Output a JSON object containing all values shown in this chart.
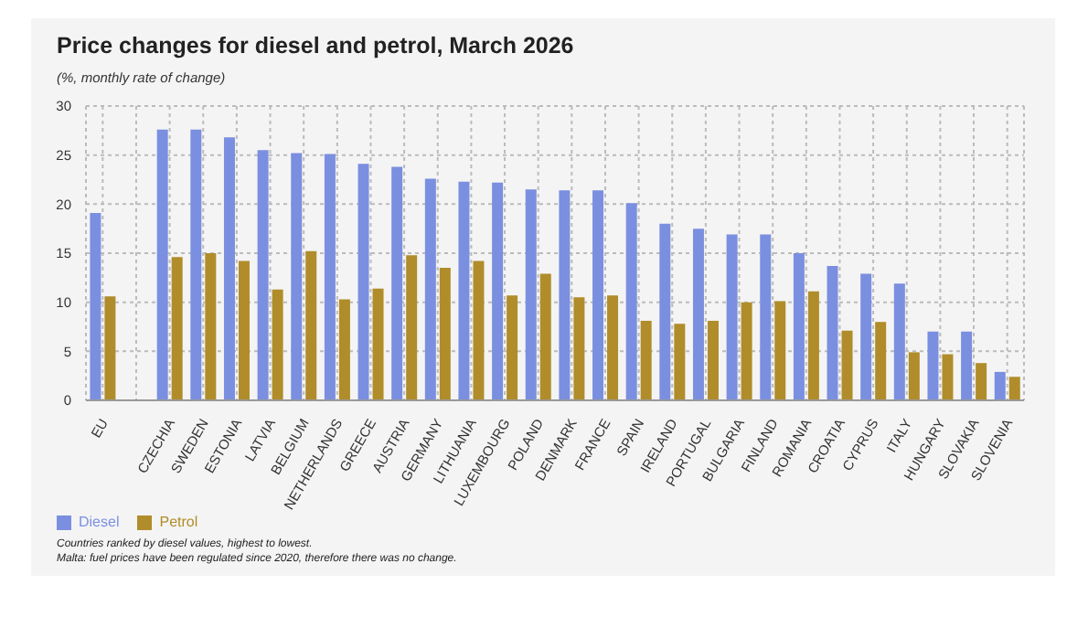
{
  "chart_data": {
    "type": "bar",
    "title": "Price changes for diesel and petrol, March 2026",
    "subtitle": "(%, monthly rate of change)",
    "categories": [
      "EU",
      null,
      "CZECHIA",
      "SWEDEN",
      "ESTONIA",
      "LATVIA",
      "BELGIUM",
      "NETHERLANDS",
      "GREECE",
      "AUSTRIA",
      "GERMANY",
      "LITHUANIA",
      "LUXEMBOURG",
      "POLAND",
      "DENMARK",
      "FRANCE",
      "SPAIN",
      "IRELAND",
      "PORTUGAL",
      "BULGARIA",
      "FINLAND",
      "ROMANIA",
      "CROATIA",
      "CYPRUS",
      "ITALY",
      "HUNGARY",
      "SLOVAKIA",
      "SLOVENIA"
    ],
    "series": [
      {
        "name": "Diesel",
        "color": "#7b8fe0",
        "values": [
          19.1,
          null,
          27.6,
          27.6,
          26.8,
          25.5,
          25.2,
          25.1,
          24.1,
          23.8,
          22.6,
          22.3,
          22.2,
          21.5,
          21.4,
          21.4,
          20.1,
          18.0,
          17.5,
          16.9,
          16.9,
          15.0,
          13.7,
          12.9,
          11.9,
          7.0,
          7.0,
          2.9
        ]
      },
      {
        "name": "Petrol",
        "color": "#b08d2a",
        "values": [
          10.6,
          null,
          14.6,
          15.0,
          14.2,
          11.3,
          15.2,
          10.3,
          11.4,
          14.8,
          13.5,
          14.2,
          10.7,
          12.9,
          10.5,
          10.7,
          8.1,
          7.8,
          8.1,
          10.0,
          10.1,
          11.1,
          7.1,
          8.0,
          4.9,
          4.7,
          3.8,
          2.4
        ]
      }
    ],
    "ylim": [
      0,
      30
    ],
    "yticks": [
      0,
      5,
      10,
      15,
      20,
      25,
      30
    ],
    "grid": true,
    "legend": "bottom left",
    "annotations": [
      "Countries ranked by diesel values, highest to lowest.",
      "Malta: fuel prices have been regulated since 2020, therefore there was no change."
    ]
  }
}
